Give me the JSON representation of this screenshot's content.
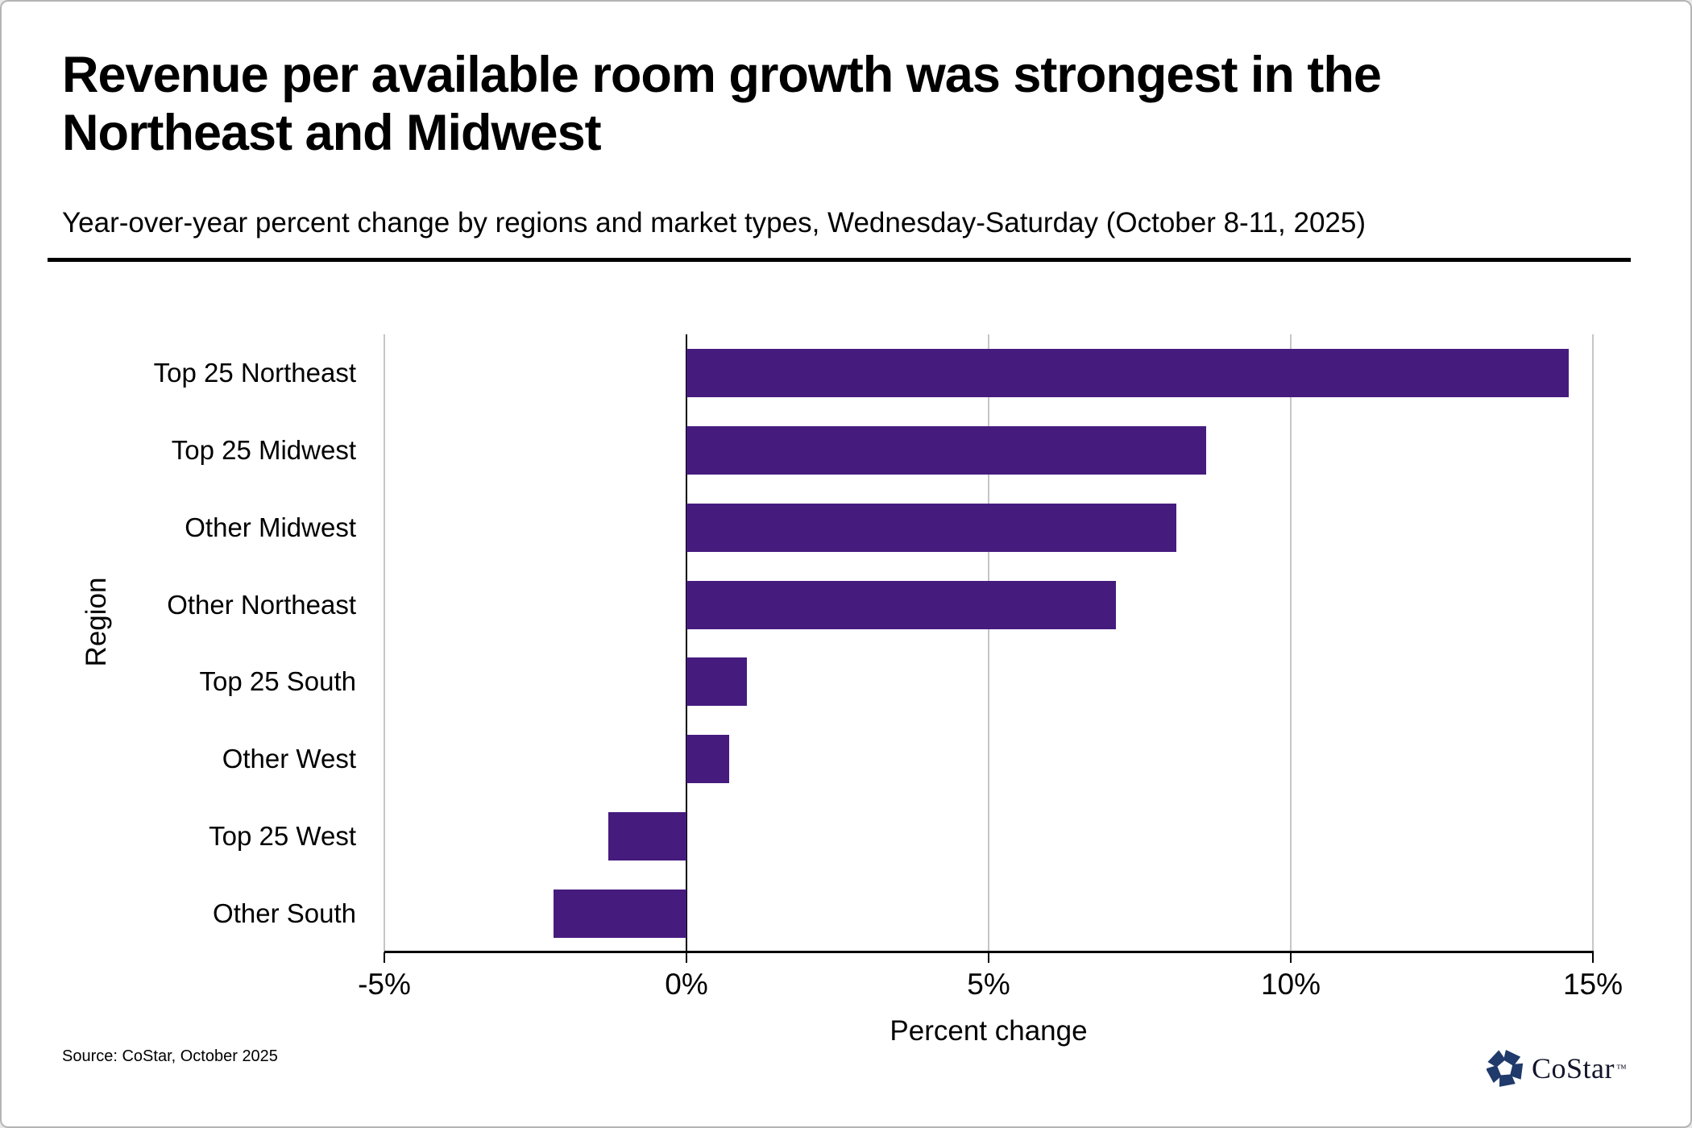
{
  "header": {
    "title_line1": "Revenue per available room growth was strongest in the",
    "title_line2": "Northeast and Midwest",
    "subtitle": "Year-over-year percent change by regions and market types, Wednesday-Saturday (October 8-11, 2025)"
  },
  "chart_data": {
    "type": "bar",
    "orientation": "horizontal",
    "title": "Revenue per available room growth was strongest in the Northeast and Midwest",
    "subtitle": "Year-over-year percent change by regions and market types, Wednesday-Saturday (October 8-11, 2025)",
    "categories": [
      "Top 25 Northeast",
      "Top 25 Midwest",
      "Other Midwest",
      "Other Northeast",
      "Top 25 South",
      "Other West",
      "Top 25 West",
      "Other South"
    ],
    "values": [
      14.6,
      8.6,
      8.1,
      7.1,
      1.0,
      0.7,
      -1.3,
      -2.2
    ],
    "xlabel": "Percent change",
    "ylabel": "Region",
    "xlim": [
      -5,
      15
    ],
    "xticks": [
      -5,
      0,
      5,
      10,
      15
    ],
    "xtick_labels": [
      "-5%",
      "0%",
      "5%",
      "10%",
      "15%"
    ],
    "bar_color": "#461b7e",
    "gridline_color": "#c6c6c6",
    "zero_line_color": "#000000",
    "grid": "vertical-at-ticks",
    "legend": "none"
  },
  "footer": {
    "source": "Source: CoStar, October 2025",
    "logo": {
      "text": "CoStar",
      "trademark": "™",
      "icon": "costar-pinwheel-icon",
      "icon_color": "#1f3a6b"
    }
  }
}
